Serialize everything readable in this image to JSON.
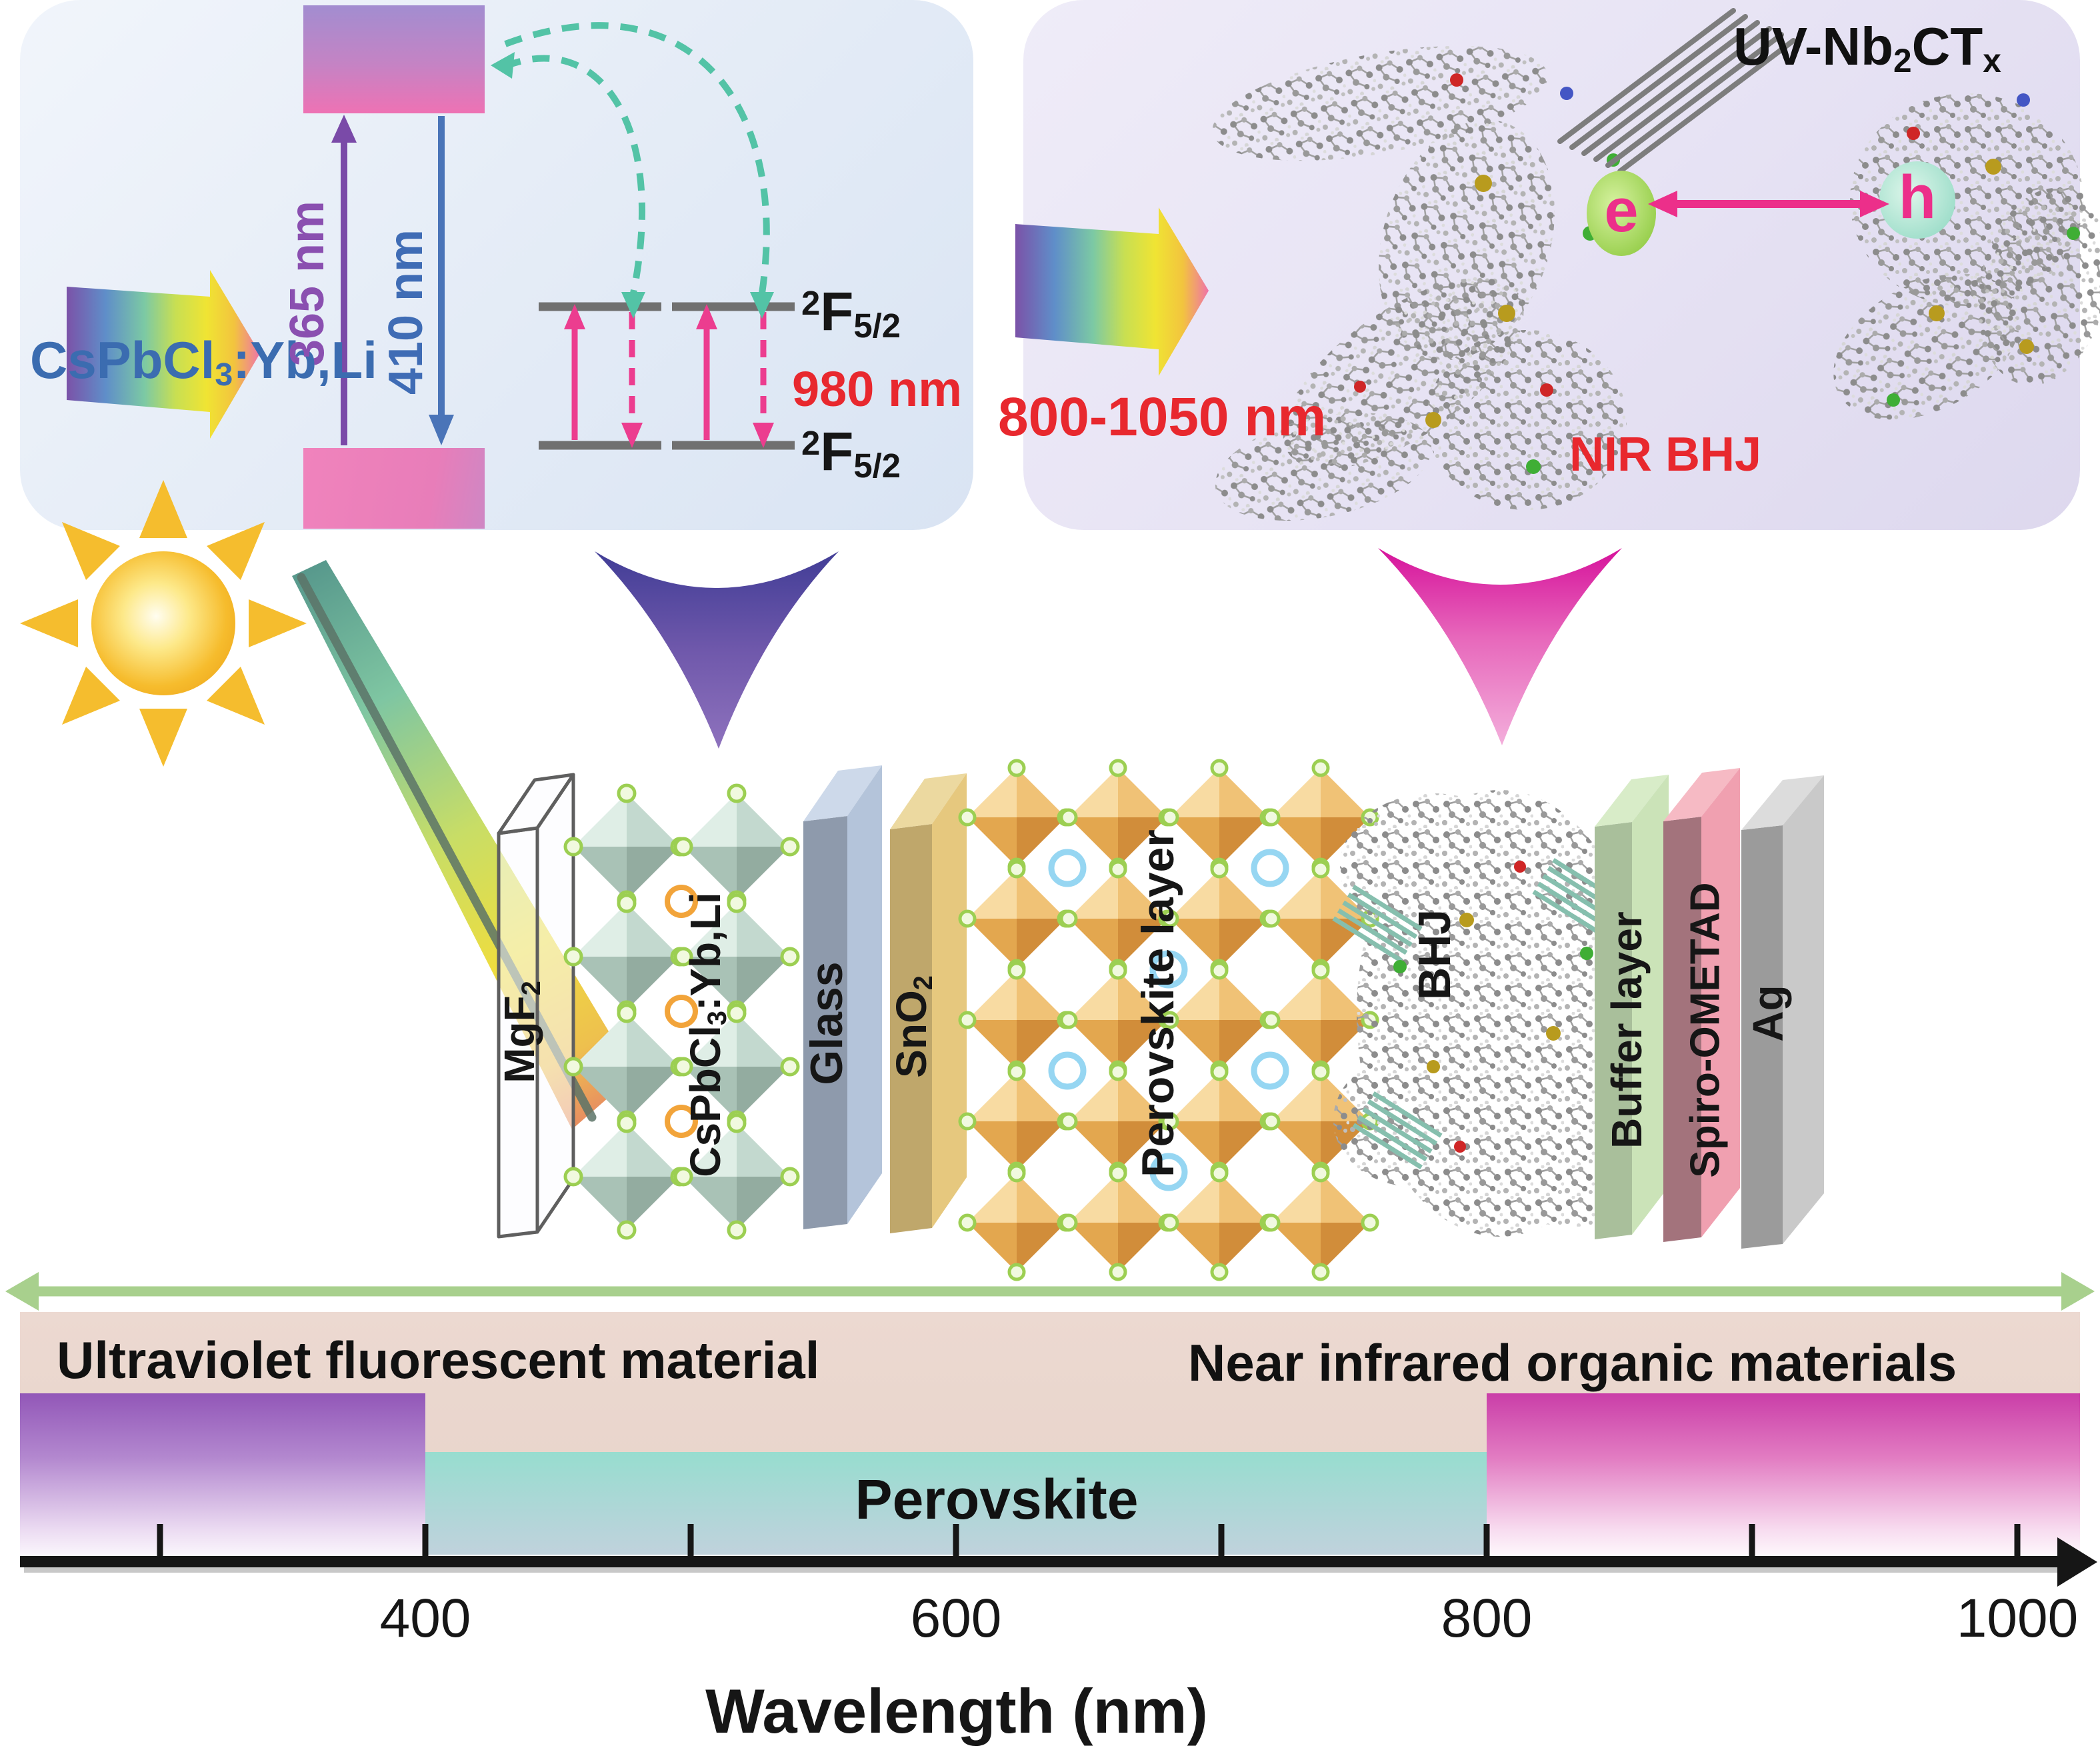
{
  "uv_panel": {
    "material": [
      {
        "t": "CsPbCl"
      },
      {
        "sub": "3"
      },
      {
        "t": ":Yb,Li"
      }
    ],
    "excitation": "365 nm",
    "emission_visible": "410 nm",
    "emission_nir": "980 nm",
    "level_upper": [
      {
        "sup": "2"
      },
      {
        "t": "F"
      },
      {
        "sub": "5/2"
      }
    ],
    "level_lower": [
      {
        "sup": "2"
      },
      {
        "t": "F"
      },
      {
        "sub": "5/2"
      }
    ]
  },
  "nir_panel": {
    "absorption_range": "800-1050 nm",
    "mxene": [
      {
        "t": "UV-Nb"
      },
      {
        "sub": "2"
      },
      {
        "t": "CT"
      },
      {
        "sub": "x"
      }
    ],
    "electron": "e",
    "hole": "h",
    "bhj": "NIR BHJ"
  },
  "device": {
    "mgf2": [
      {
        "t": "MgF"
      },
      {
        "sub": "2"
      }
    ],
    "cspbcl3": [
      {
        "t": "CsPbCl"
      },
      {
        "sub": "3"
      },
      {
        "t": ":Yb,Li"
      }
    ],
    "glass": "Glass",
    "sno2": [
      {
        "t": "SnO"
      },
      {
        "sub": "2"
      }
    ],
    "perovskite": "Perovskite layer",
    "bhj": "BHJ",
    "buffer": "Buffer layer",
    "spiro": "Spiro-OMETAD",
    "ag": "Ag"
  },
  "spectrum": {
    "uv_label": "Ultraviolet fluorescent material",
    "nir_label": "Near infrared organic materials",
    "perovskite_label": "Perovskite",
    "uv_block_end_nm": 400,
    "perovskite_block_range_nm": [
      400,
      800
    ],
    "nir_block_start_nm": 800,
    "axis_ticks": [
      "400",
      "600",
      "800",
      "1000"
    ],
    "axis_title": "Wavelength (nm)"
  },
  "colors": {
    "uv_accent": "#8a4fb0",
    "visible_accent": "#3f6cb5",
    "red_accent": "#e8282e",
    "pink_accent": "#ec3d8f",
    "teal_accent": "#53c3a6",
    "axis_green": "#a8d08d"
  }
}
